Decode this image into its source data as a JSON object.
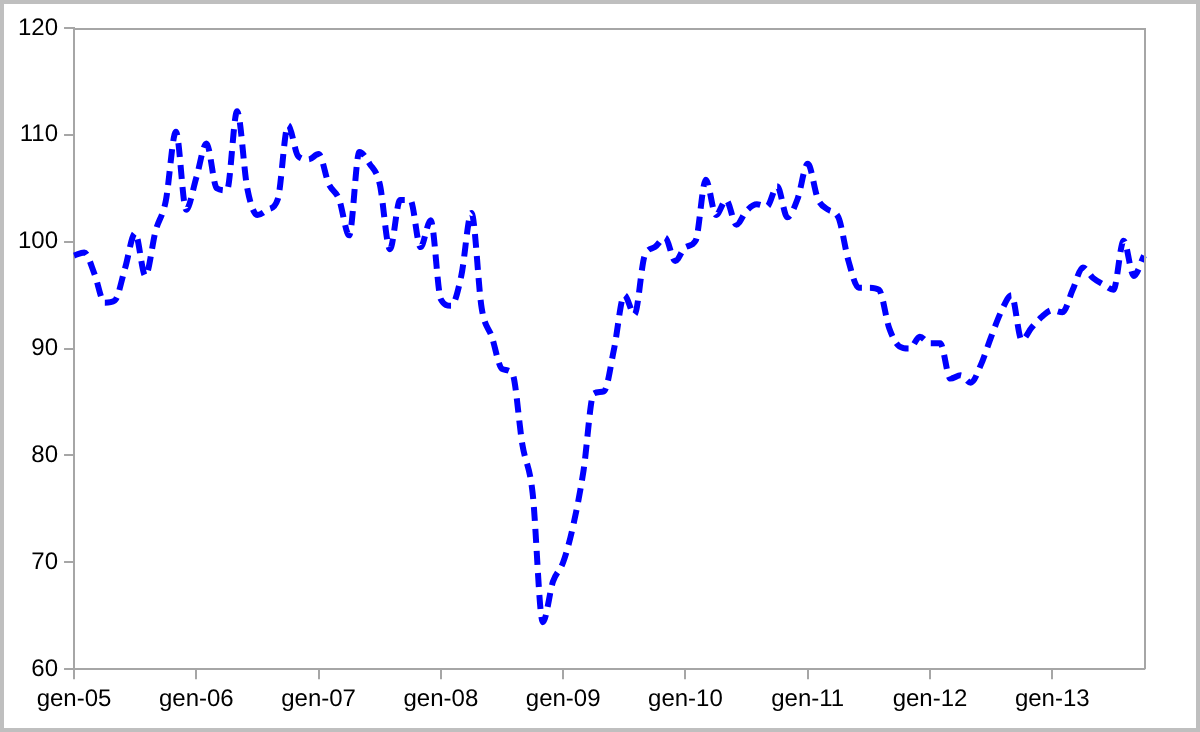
{
  "chart_data": {
    "type": "line",
    "categories": [
      "gen-05",
      null,
      null,
      null,
      null,
      null,
      null,
      null,
      null,
      null,
      null,
      null,
      "gen-06",
      null,
      null,
      null,
      null,
      null,
      null,
      null,
      null,
      null,
      null,
      null,
      "gen-07",
      null,
      null,
      null,
      null,
      null,
      null,
      null,
      null,
      null,
      null,
      null,
      "gen-08",
      null,
      null,
      null,
      null,
      null,
      null,
      null,
      null,
      null,
      null,
      null,
      "gen-09",
      null,
      null,
      null,
      null,
      null,
      null,
      null,
      null,
      null,
      null,
      null,
      "gen-10",
      null,
      null,
      null,
      null,
      null,
      null,
      null,
      null,
      null,
      null,
      null,
      "gen-11",
      null,
      null,
      null,
      null,
      null,
      null,
      null,
      null,
      null,
      null,
      null,
      "gen-12",
      null,
      null,
      null,
      null,
      null,
      null,
      null,
      null,
      null,
      null,
      null,
      "gen-13",
      null,
      null,
      null,
      null,
      null,
      null,
      null,
      null,
      null
    ],
    "series": [
      {
        "color": "#0000ff",
        "values": [
          98.7,
          99,
          97,
          94.3,
          94.5,
          97.5,
          100.8,
          96.8,
          101,
          103.8,
          110.3,
          103,
          106,
          109.2,
          105,
          104.8,
          112.2,
          105,
          102.5,
          103,
          104,
          110.9,
          108,
          107.7,
          108.2,
          105.4,
          104,
          100.6,
          108.4,
          107.3,
          105.4,
          99.3,
          103.9,
          103.9,
          99.5,
          102,
          94.6,
          94,
          96.8,
          102.7,
          93.8,
          91.1,
          88.1,
          87.7,
          81,
          76.5,
          64.4,
          68.2,
          70,
          73.5,
          78.6,
          85.8,
          86,
          90,
          95,
          93.2,
          98.7,
          99.5,
          100.4,
          98.2,
          99.5,
          100.1,
          105.8,
          102.5,
          103.9,
          101.6,
          102.9,
          103.5,
          103.3,
          105.2,
          102.3,
          104,
          107.3,
          104,
          103,
          102.3,
          98.2,
          95.7,
          95.7,
          95.5,
          91.9,
          90.2,
          90,
          91.1,
          90.5,
          90.5,
          87.2,
          87.5,
          86.8,
          88.5,
          91.1,
          93.5,
          95,
          90.8,
          92,
          93,
          93.6,
          93.4,
          95.5,
          97.6,
          96.6,
          96,
          95.5,
          100.1,
          96.8,
          98.7
        ]
      }
    ],
    "ylim": [
      60,
      120
    ],
    "yticks": [
      60,
      70,
      80,
      90,
      100,
      110,
      120
    ],
    "grid": false,
    "legend": false,
    "marker": "none",
    "line_style": "dashed"
  }
}
